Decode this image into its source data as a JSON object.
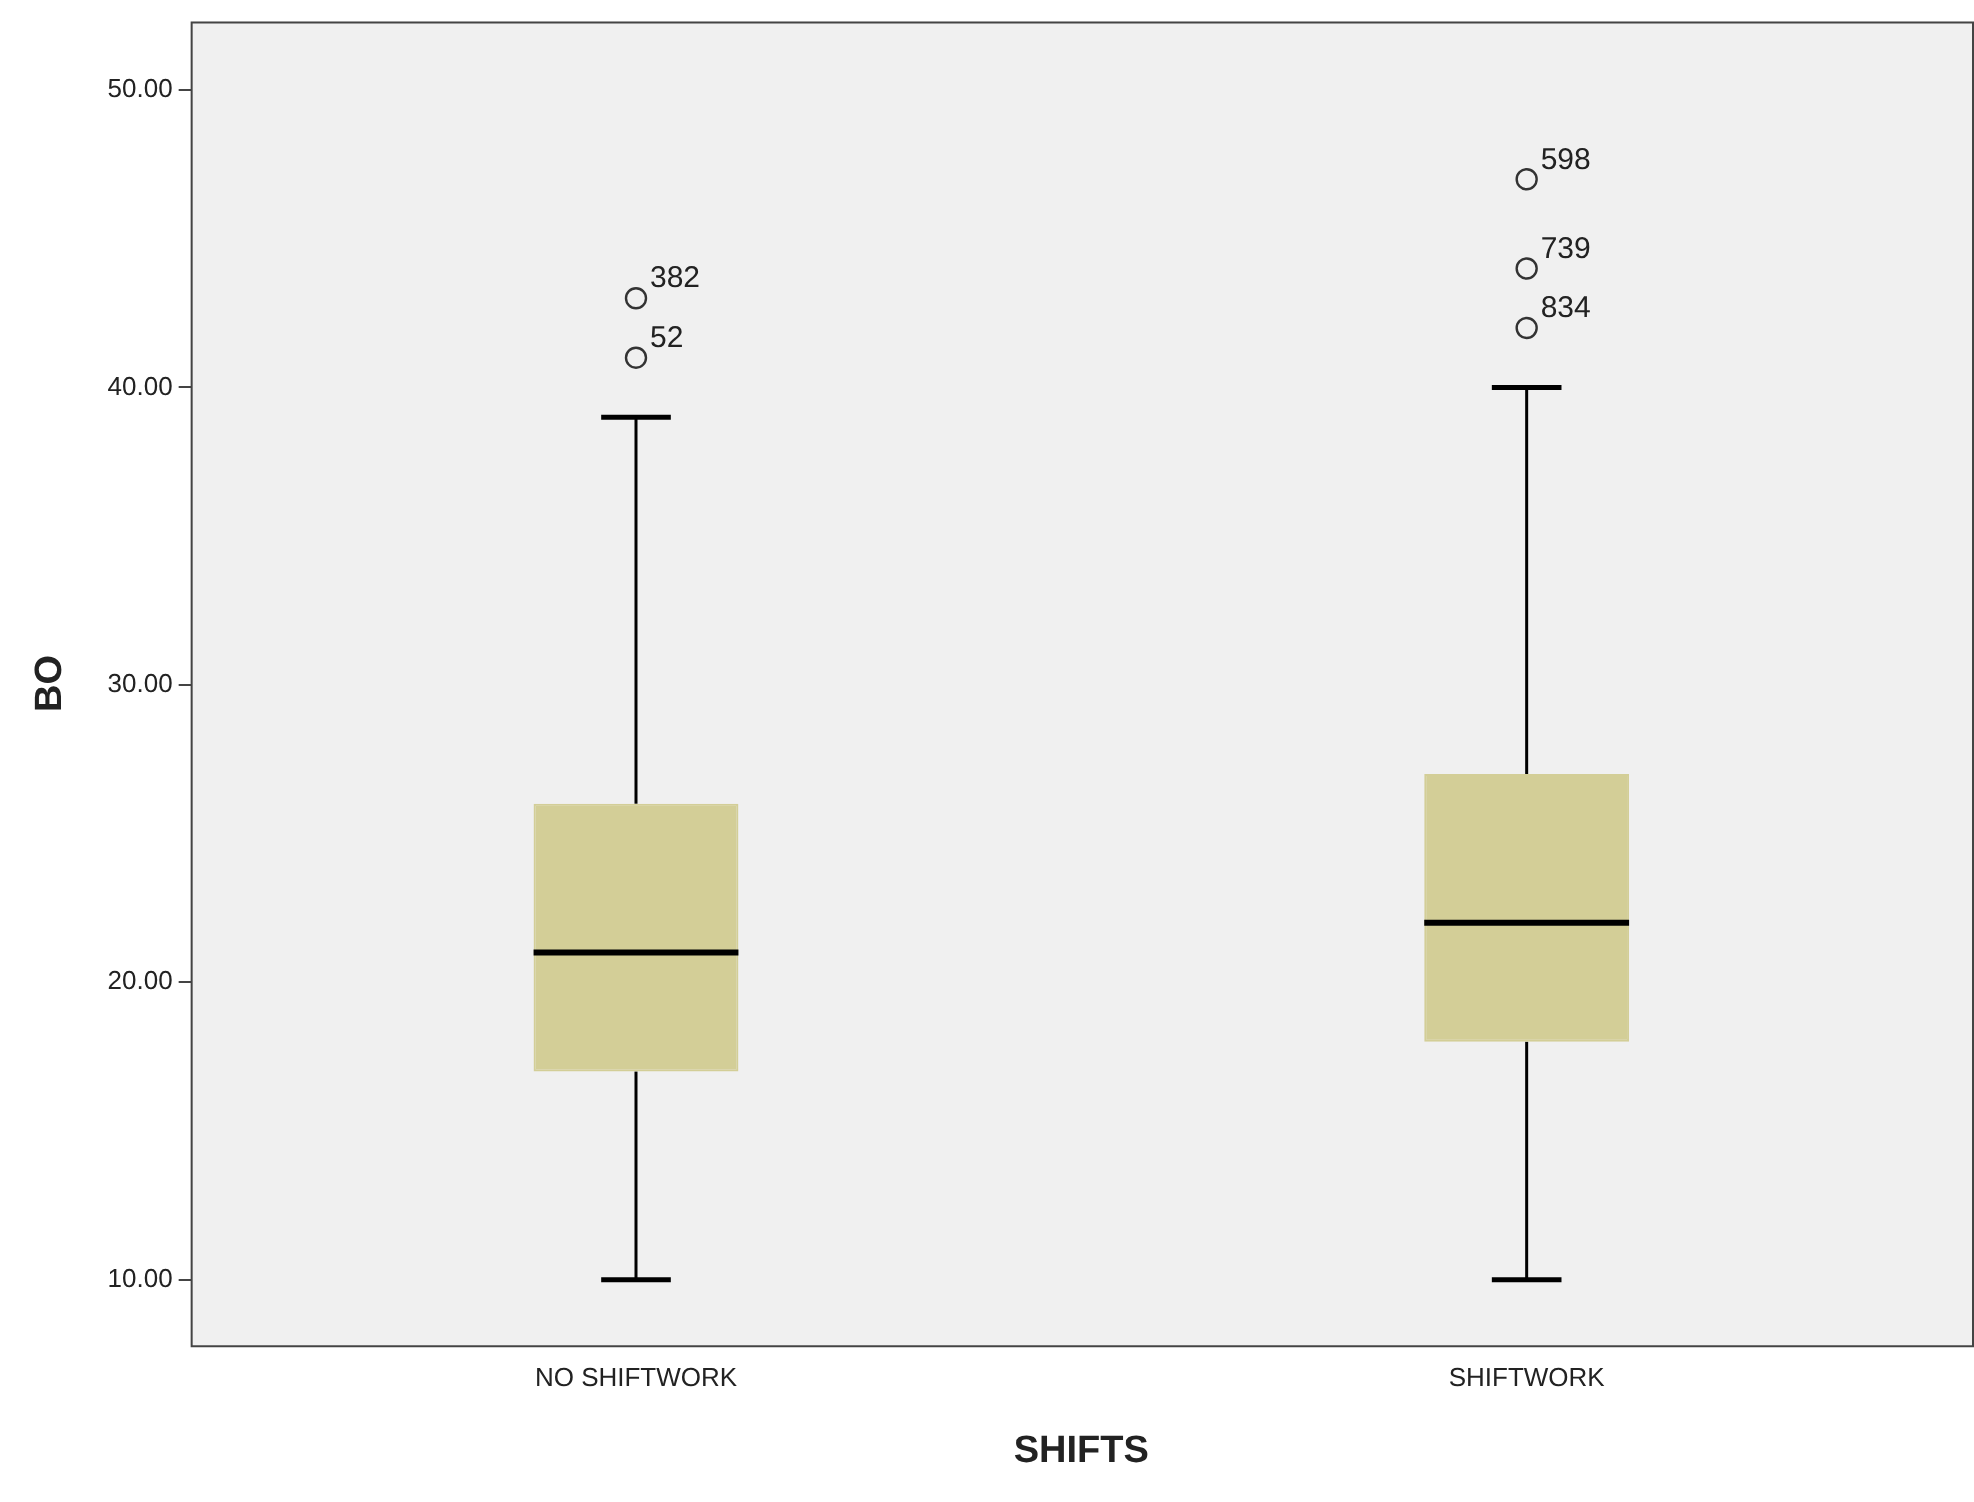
{
  "chart_data": {
    "type": "box",
    "xlabel": "SHIFTS",
    "ylabel": "BO",
    "categories": [
      "NO SHIFTWORK",
      "SHIFTWORK"
    ],
    "color": "#d3ce97",
    "boxes": [
      {
        "low": 10,
        "q1": 17,
        "median": 21,
        "q3": 26,
        "high": 39,
        "outliers": [
          43,
          41
        ]
      },
      {
        "low": 10,
        "q1": 18,
        "median": 22,
        "q3": 27,
        "high": 40,
        "outliers": [
          47,
          44,
          42
        ]
      }
    ],
    "ylim": [
      7.8,
      52.3
    ],
    "yticks": [
      {
        "value": 10,
        "label": "10.00"
      },
      {
        "value": 20,
        "label": "20.00"
      },
      {
        "value": 30,
        "label": "30.00"
      },
      {
        "value": 40,
        "label": "40.00"
      },
      {
        "value": 50,
        "label": "50.00"
      }
    ],
    "grid": false,
    "annotations": [
      "382",
      "52",
      "598",
      "739",
      "834"
    ]
  }
}
